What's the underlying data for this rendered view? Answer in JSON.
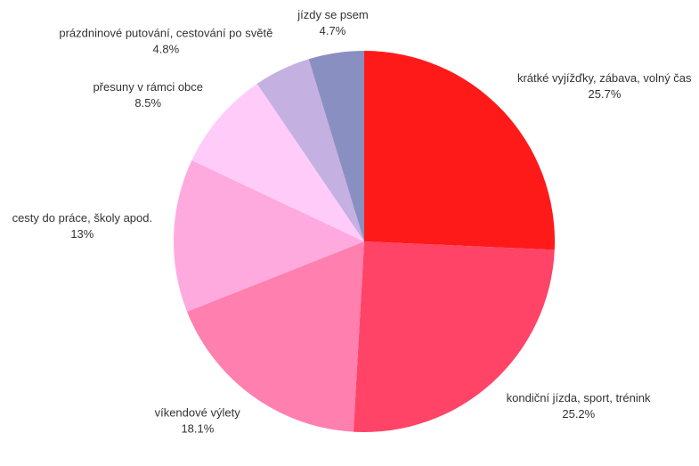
{
  "chart_data": {
    "type": "pie",
    "categories": [
      "krátké vyjížďky, zábava, volný čas",
      "kondiční jízda, sport, trénink",
      "víkendové výlety",
      "cesty do práce, školy apod.",
      "přesuny v rámci obce",
      "prázdninové putování, cestování po světě",
      "jízdy se psem"
    ],
    "values": [
      25.7,
      25.2,
      18.1,
      13,
      8.5,
      4.8,
      4.7
    ],
    "value_labels": [
      "25.7%",
      "25.2%",
      "18.1%",
      "13%",
      "8.5%",
      "4.8%",
      "4.7%"
    ],
    "colors": [
      "#ff1a1a",
      "#ff4468",
      "#ff7fae",
      "#ffaadf",
      "#ffccfa",
      "#c5b0e2",
      "#8a8fc2"
    ]
  }
}
